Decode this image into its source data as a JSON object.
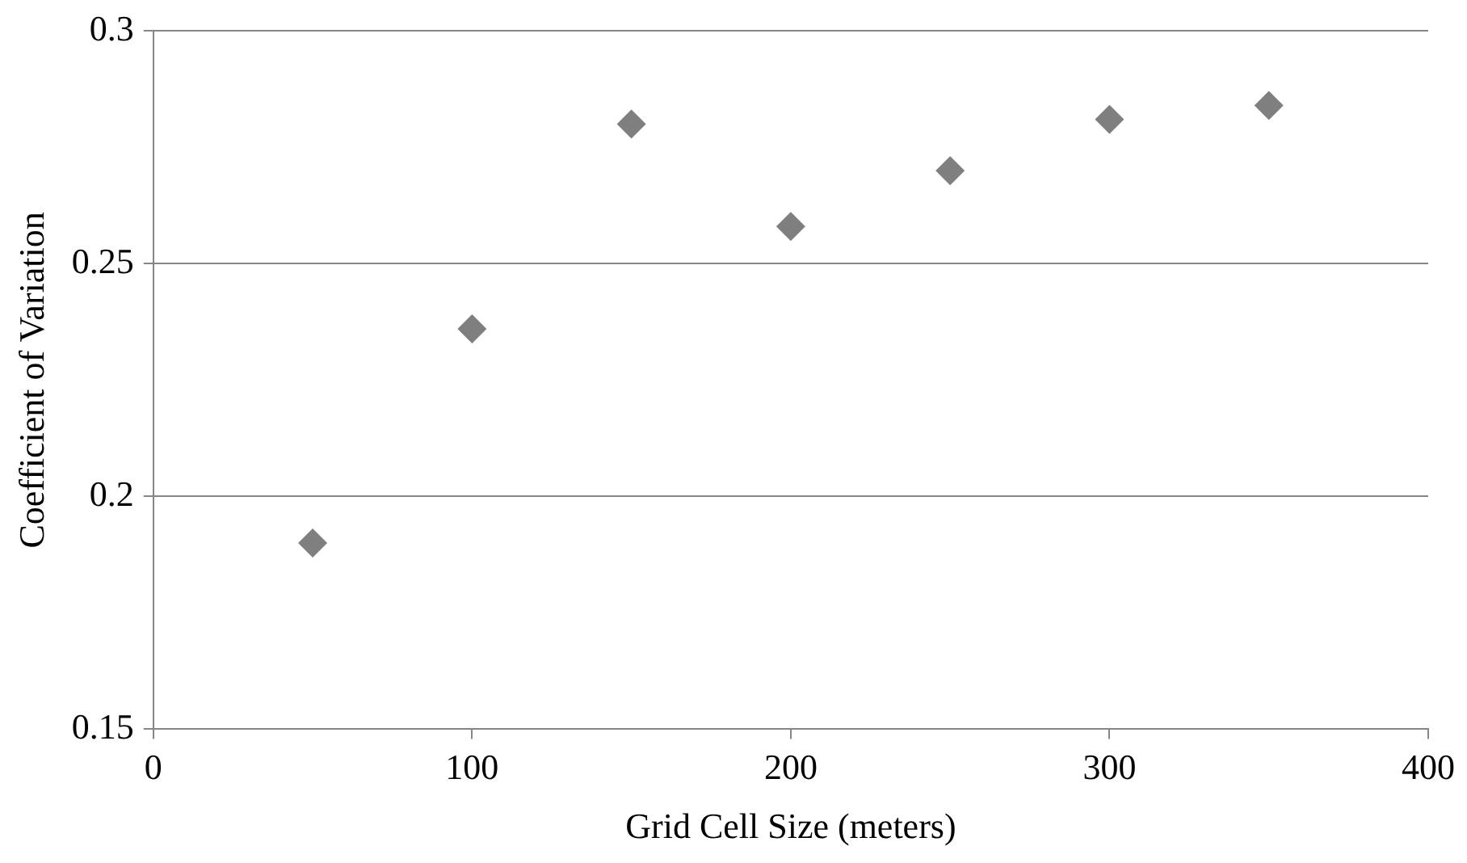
{
  "chart_data": {
    "type": "scatter",
    "xlabel": "Grid Cell Size (meters)",
    "ylabel": "Coefficient of Variation",
    "x": [
      50,
      100,
      150,
      200,
      250,
      300,
      350
    ],
    "values": [
      0.19,
      0.236,
      0.28,
      0.258,
      0.27,
      0.281,
      0.284
    ],
    "color": "#7f7f7f",
    "marker": "diamond",
    "xlim": [
      0,
      400
    ],
    "xticks": [
      0,
      100,
      200,
      300,
      400
    ],
    "ylim": [
      0.15,
      0.3
    ],
    "yticks": [
      0.15,
      0.2,
      0.25,
      0.3
    ],
    "grid": "y",
    "legend": false
  }
}
